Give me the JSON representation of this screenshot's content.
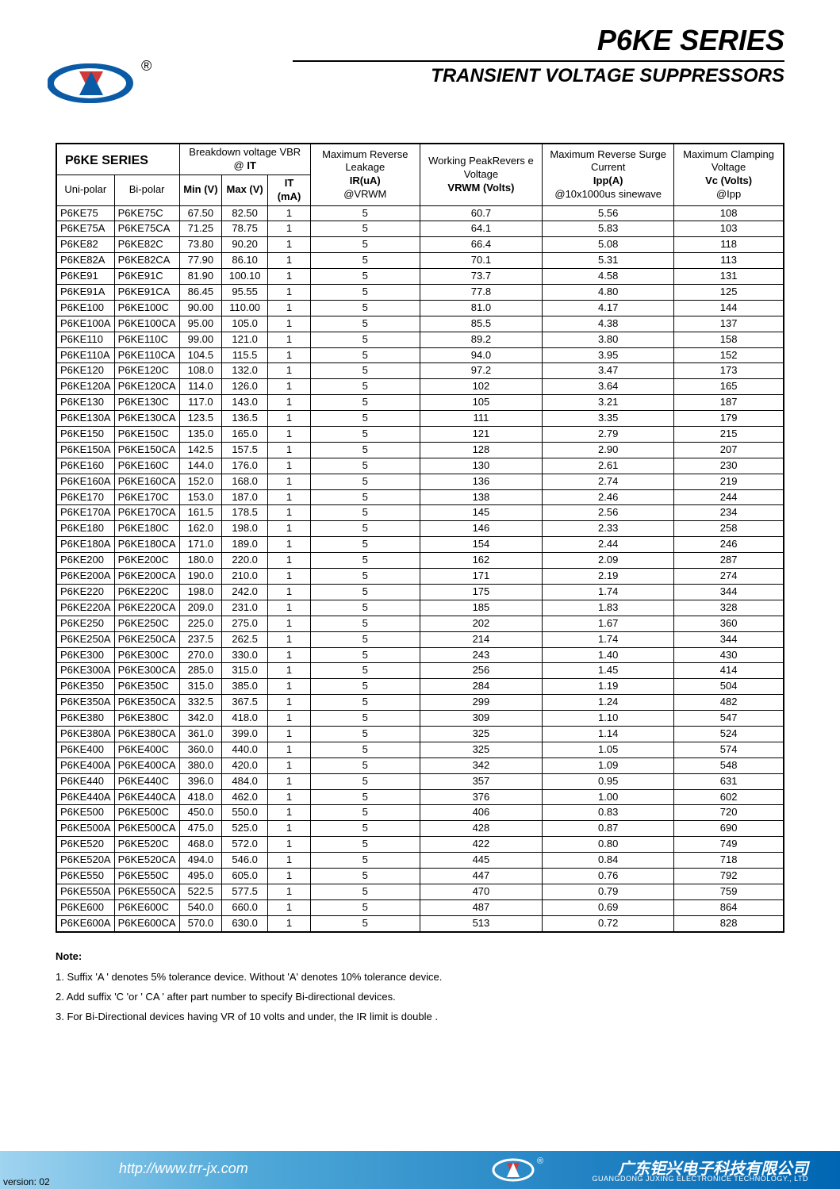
{
  "header": {
    "title": "P6KE SERIES",
    "subtitle": "TRANSIENT VOLTAGE SUPPRESSORS"
  },
  "table": {
    "series_label": "P6KE SERIES",
    "headers": {
      "breakdown": "Breakdown voltage VBR @",
      "breakdown_it": "IT",
      "leakage1": "Maximum Reverse Leakage",
      "leakage2": "IR(uA)",
      "leakage3": "@VRWM",
      "peak1": "Working PeakRevers e Voltage",
      "peak2": "VRWM (Volts)",
      "surge1": "Maximum Reverse Surge Current",
      "surge2": "Ipp(A)",
      "surge3": "@10x1000us sinewave",
      "clamp1": "Maximum Clamping Voltage",
      "clamp2": "Vc (Volts)",
      "clamp3": "@Ipp",
      "unipolar": "Uni-polar",
      "bipolar": "Bi-polar",
      "minv": "Min (V)",
      "maxv": "Max (V)",
      "itma": "IT (mA)"
    },
    "rows": [
      [
        "P6KE75",
        "P6KE75C",
        "67.50",
        "82.50",
        "1",
        "5",
        "60.7",
        "5.56",
        "108"
      ],
      [
        "P6KE75A",
        "P6KE75CA",
        "71.25",
        "78.75",
        "1",
        "5",
        "64.1",
        "5.83",
        "103"
      ],
      [
        "P6KE82",
        "P6KE82C",
        "73.80",
        "90.20",
        "1",
        "5",
        "66.4",
        "5.08",
        "118"
      ],
      [
        "P6KE82A",
        "P6KE82CA",
        "77.90",
        "86.10",
        "1",
        "5",
        "70.1",
        "5.31",
        "113"
      ],
      [
        "P6KE91",
        "P6KE91C",
        "81.90",
        "100.10",
        "1",
        "5",
        "73.7",
        "4.58",
        "131"
      ],
      [
        "P6KE91A",
        "P6KE91CA",
        "86.45",
        "95.55",
        "1",
        "5",
        "77.8",
        "4.80",
        "125"
      ],
      [
        "P6KE100",
        "P6KE100C",
        "90.00",
        "110.00",
        "1",
        "5",
        "81.0",
        "4.17",
        "144"
      ],
      [
        "P6KE100A",
        "P6KE100CA",
        "95.00",
        "105.0",
        "1",
        "5",
        "85.5",
        "4.38",
        "137"
      ],
      [
        "P6KE110",
        "P6KE110C",
        "99.00",
        "121.0",
        "1",
        "5",
        "89.2",
        "3.80",
        "158"
      ],
      [
        "P6KE110A",
        "P6KE110CA",
        "104.5",
        "115.5",
        "1",
        "5",
        "94.0",
        "3.95",
        "152"
      ],
      [
        "P6KE120",
        "P6KE120C",
        "108.0",
        "132.0",
        "1",
        "5",
        "97.2",
        "3.47",
        "173"
      ],
      [
        "P6KE120A",
        "P6KE120CA",
        "114.0",
        "126.0",
        "1",
        "5",
        "102",
        "3.64",
        "165"
      ],
      [
        "P6KE130",
        "P6KE130C",
        "117.0",
        "143.0",
        "1",
        "5",
        "105",
        "3.21",
        "187"
      ],
      [
        "P6KE130A",
        "P6KE130CA",
        "123.5",
        "136.5",
        "1",
        "5",
        "111",
        "3.35",
        "179"
      ],
      [
        "P6KE150",
        "P6KE150C",
        "135.0",
        "165.0",
        "1",
        "5",
        "121",
        "2.79",
        "215"
      ],
      [
        "P6KE150A",
        "P6KE150CA",
        "142.5",
        "157.5",
        "1",
        "5",
        "128",
        "2.90",
        "207"
      ],
      [
        "P6KE160",
        "P6KE160C",
        "144.0",
        "176.0",
        "1",
        "5",
        "130",
        "2.61",
        "230"
      ],
      [
        "P6KE160A",
        "P6KE160CA",
        "152.0",
        "168.0",
        "1",
        "5",
        "136",
        "2.74",
        "219"
      ],
      [
        "P6KE170",
        "P6KE170C",
        "153.0",
        "187.0",
        "1",
        "5",
        "138",
        "2.46",
        "244"
      ],
      [
        "P6KE170A",
        "P6KE170CA",
        "161.5",
        "178.5",
        "1",
        "5",
        "145",
        "2.56",
        "234"
      ],
      [
        "P6KE180",
        "P6KE180C",
        "162.0",
        "198.0",
        "1",
        "5",
        "146",
        "2.33",
        "258"
      ],
      [
        "P6KE180A",
        "P6KE180CA",
        "171.0",
        "189.0",
        "1",
        "5",
        "154",
        "2.44",
        "246"
      ],
      [
        "P6KE200",
        "P6KE200C",
        "180.0",
        "220.0",
        "1",
        "5",
        "162",
        "2.09",
        "287"
      ],
      [
        "P6KE200A",
        "P6KE200CA",
        "190.0",
        "210.0",
        "1",
        "5",
        "171",
        "2.19",
        "274"
      ],
      [
        "P6KE220",
        "P6KE220C",
        "198.0",
        "242.0",
        "1",
        "5",
        "175",
        "1.74",
        "344"
      ],
      [
        "P6KE220A",
        "P6KE220CA",
        "209.0",
        "231.0",
        "1",
        "5",
        "185",
        "1.83",
        "328"
      ],
      [
        "P6KE250",
        "P6KE250C",
        "225.0",
        "275.0",
        "1",
        "5",
        "202",
        "1.67",
        "360"
      ],
      [
        "P6KE250A",
        "P6KE250CA",
        "237.5",
        "262.5",
        "1",
        "5",
        "214",
        "1.74",
        "344"
      ],
      [
        "P6KE300",
        "P6KE300C",
        "270.0",
        "330.0",
        "1",
        "5",
        "243",
        "1.40",
        "430"
      ],
      [
        "P6KE300A",
        "P6KE300CA",
        "285.0",
        "315.0",
        "1",
        "5",
        "256",
        "1.45",
        "414"
      ],
      [
        "P6KE350",
        "P6KE350C",
        "315.0",
        "385.0",
        "1",
        "5",
        "284",
        "1.19",
        "504"
      ],
      [
        "P6KE350A",
        "P6KE350CA",
        "332.5",
        "367.5",
        "1",
        "5",
        "299",
        "1.24",
        "482"
      ],
      [
        "P6KE380",
        "P6KE380C",
        "342.0",
        "418.0",
        "1",
        "5",
        "309",
        "1.10",
        "547"
      ],
      [
        "P6KE380A",
        "P6KE380CA",
        "361.0",
        "399.0",
        "1",
        "5",
        "325",
        "1.14",
        "524"
      ],
      [
        "P6KE400",
        "P6KE400C",
        "360.0",
        "440.0",
        "1",
        "5",
        "325",
        "1.05",
        "574"
      ],
      [
        "P6KE400A",
        "P6KE400CA",
        "380.0",
        "420.0",
        "1",
        "5",
        "342",
        "1.09",
        "548"
      ],
      [
        "P6KE440",
        "P6KE440C",
        "396.0",
        "484.0",
        "1",
        "5",
        "357",
        "0.95",
        "631"
      ],
      [
        "P6KE440A",
        "P6KE440CA",
        "418.0",
        "462.0",
        "1",
        "5",
        "376",
        "1.00",
        "602"
      ],
      [
        "P6KE500",
        "P6KE500C",
        "450.0",
        "550.0",
        "1",
        "5",
        "406",
        "0.83",
        "720"
      ],
      [
        "P6KE500A",
        "P6KE500CA",
        "475.0",
        "525.0",
        "1",
        "5",
        "428",
        "0.87",
        "690"
      ],
      [
        "P6KE520",
        "P6KE520C",
        "468.0",
        "572.0",
        "1",
        "5",
        "422",
        "0.80",
        "749"
      ],
      [
        "P6KE520A",
        "P6KE520CA",
        "494.0",
        "546.0",
        "1",
        "5",
        "445",
        "0.84",
        "718"
      ],
      [
        "P6KE550",
        "P6KE550C",
        "495.0",
        "605.0",
        "1",
        "5",
        "447",
        "0.76",
        "792"
      ],
      [
        "P6KE550A",
        "P6KE550CA",
        "522.5",
        "577.5",
        "1",
        "5",
        "470",
        "0.79",
        "759"
      ],
      [
        "P6KE600",
        "P6KE600C",
        "540.0",
        "660.0",
        "1",
        "5",
        "487",
        "0.69",
        "864"
      ],
      [
        "P6KE600A",
        "P6KE600CA",
        "570.0",
        "630.0",
        "1",
        "5",
        "513",
        "0.72",
        "828"
      ]
    ]
  },
  "notes": {
    "title": "Note:",
    "items": [
      "1. Suffix 'A ' denotes 5% tolerance device. Without 'A' denotes 10% tolerance device.",
      "2. Add suffix 'C 'or ' CA ' after part number to specify Bi-directional devices.",
      "3. For Bi-Directional devices having VR of 10 volts and under, the IR limit is double ."
    ]
  },
  "footer": {
    "url": "http://www.trr-jx.com",
    "company_cn": "广东钜兴电子科技有限公司",
    "company_en": "GUANGDONG JUXING ELECTRONICE TECHNOLOGY., LTD",
    "version": "version: 02"
  },
  "colors": {
    "footer_start": "#a0d4f0",
    "footer_mid": "#4fa8d8",
    "footer_end": "#0066b3",
    "logo_blue": "#0b5aa6",
    "logo_red": "#d23a3a"
  }
}
